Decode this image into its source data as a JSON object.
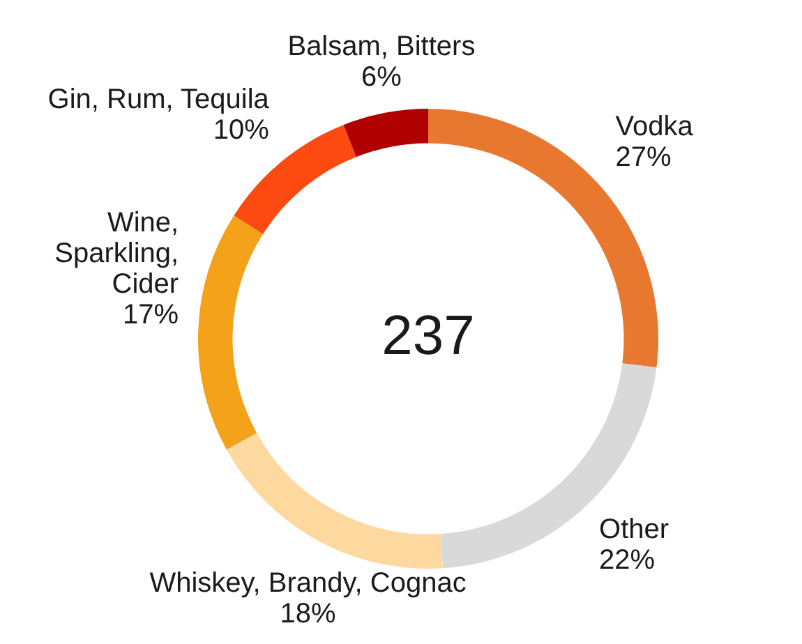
{
  "chart_data": {
    "type": "donut",
    "categories": [
      "Vodka",
      "Other",
      "Whiskey, Brandy, Cognac",
      "Wine, Sparkling, Cider",
      "Gin, Rum, Tequila",
      "Balsam, Bitters"
    ],
    "values": [
      27,
      22,
      18,
      17,
      10,
      6
    ],
    "colors": [
      "#e8782f",
      "#d9d9d9",
      "#fdd9a0",
      "#f5a21b",
      "#fc4a10",
      "#b00000"
    ],
    "value_labels": [
      "27%",
      "22%",
      "18%",
      "17%",
      "10%",
      "6%"
    ],
    "annotations": [
      "237"
    ],
    "legend": false
  }
}
